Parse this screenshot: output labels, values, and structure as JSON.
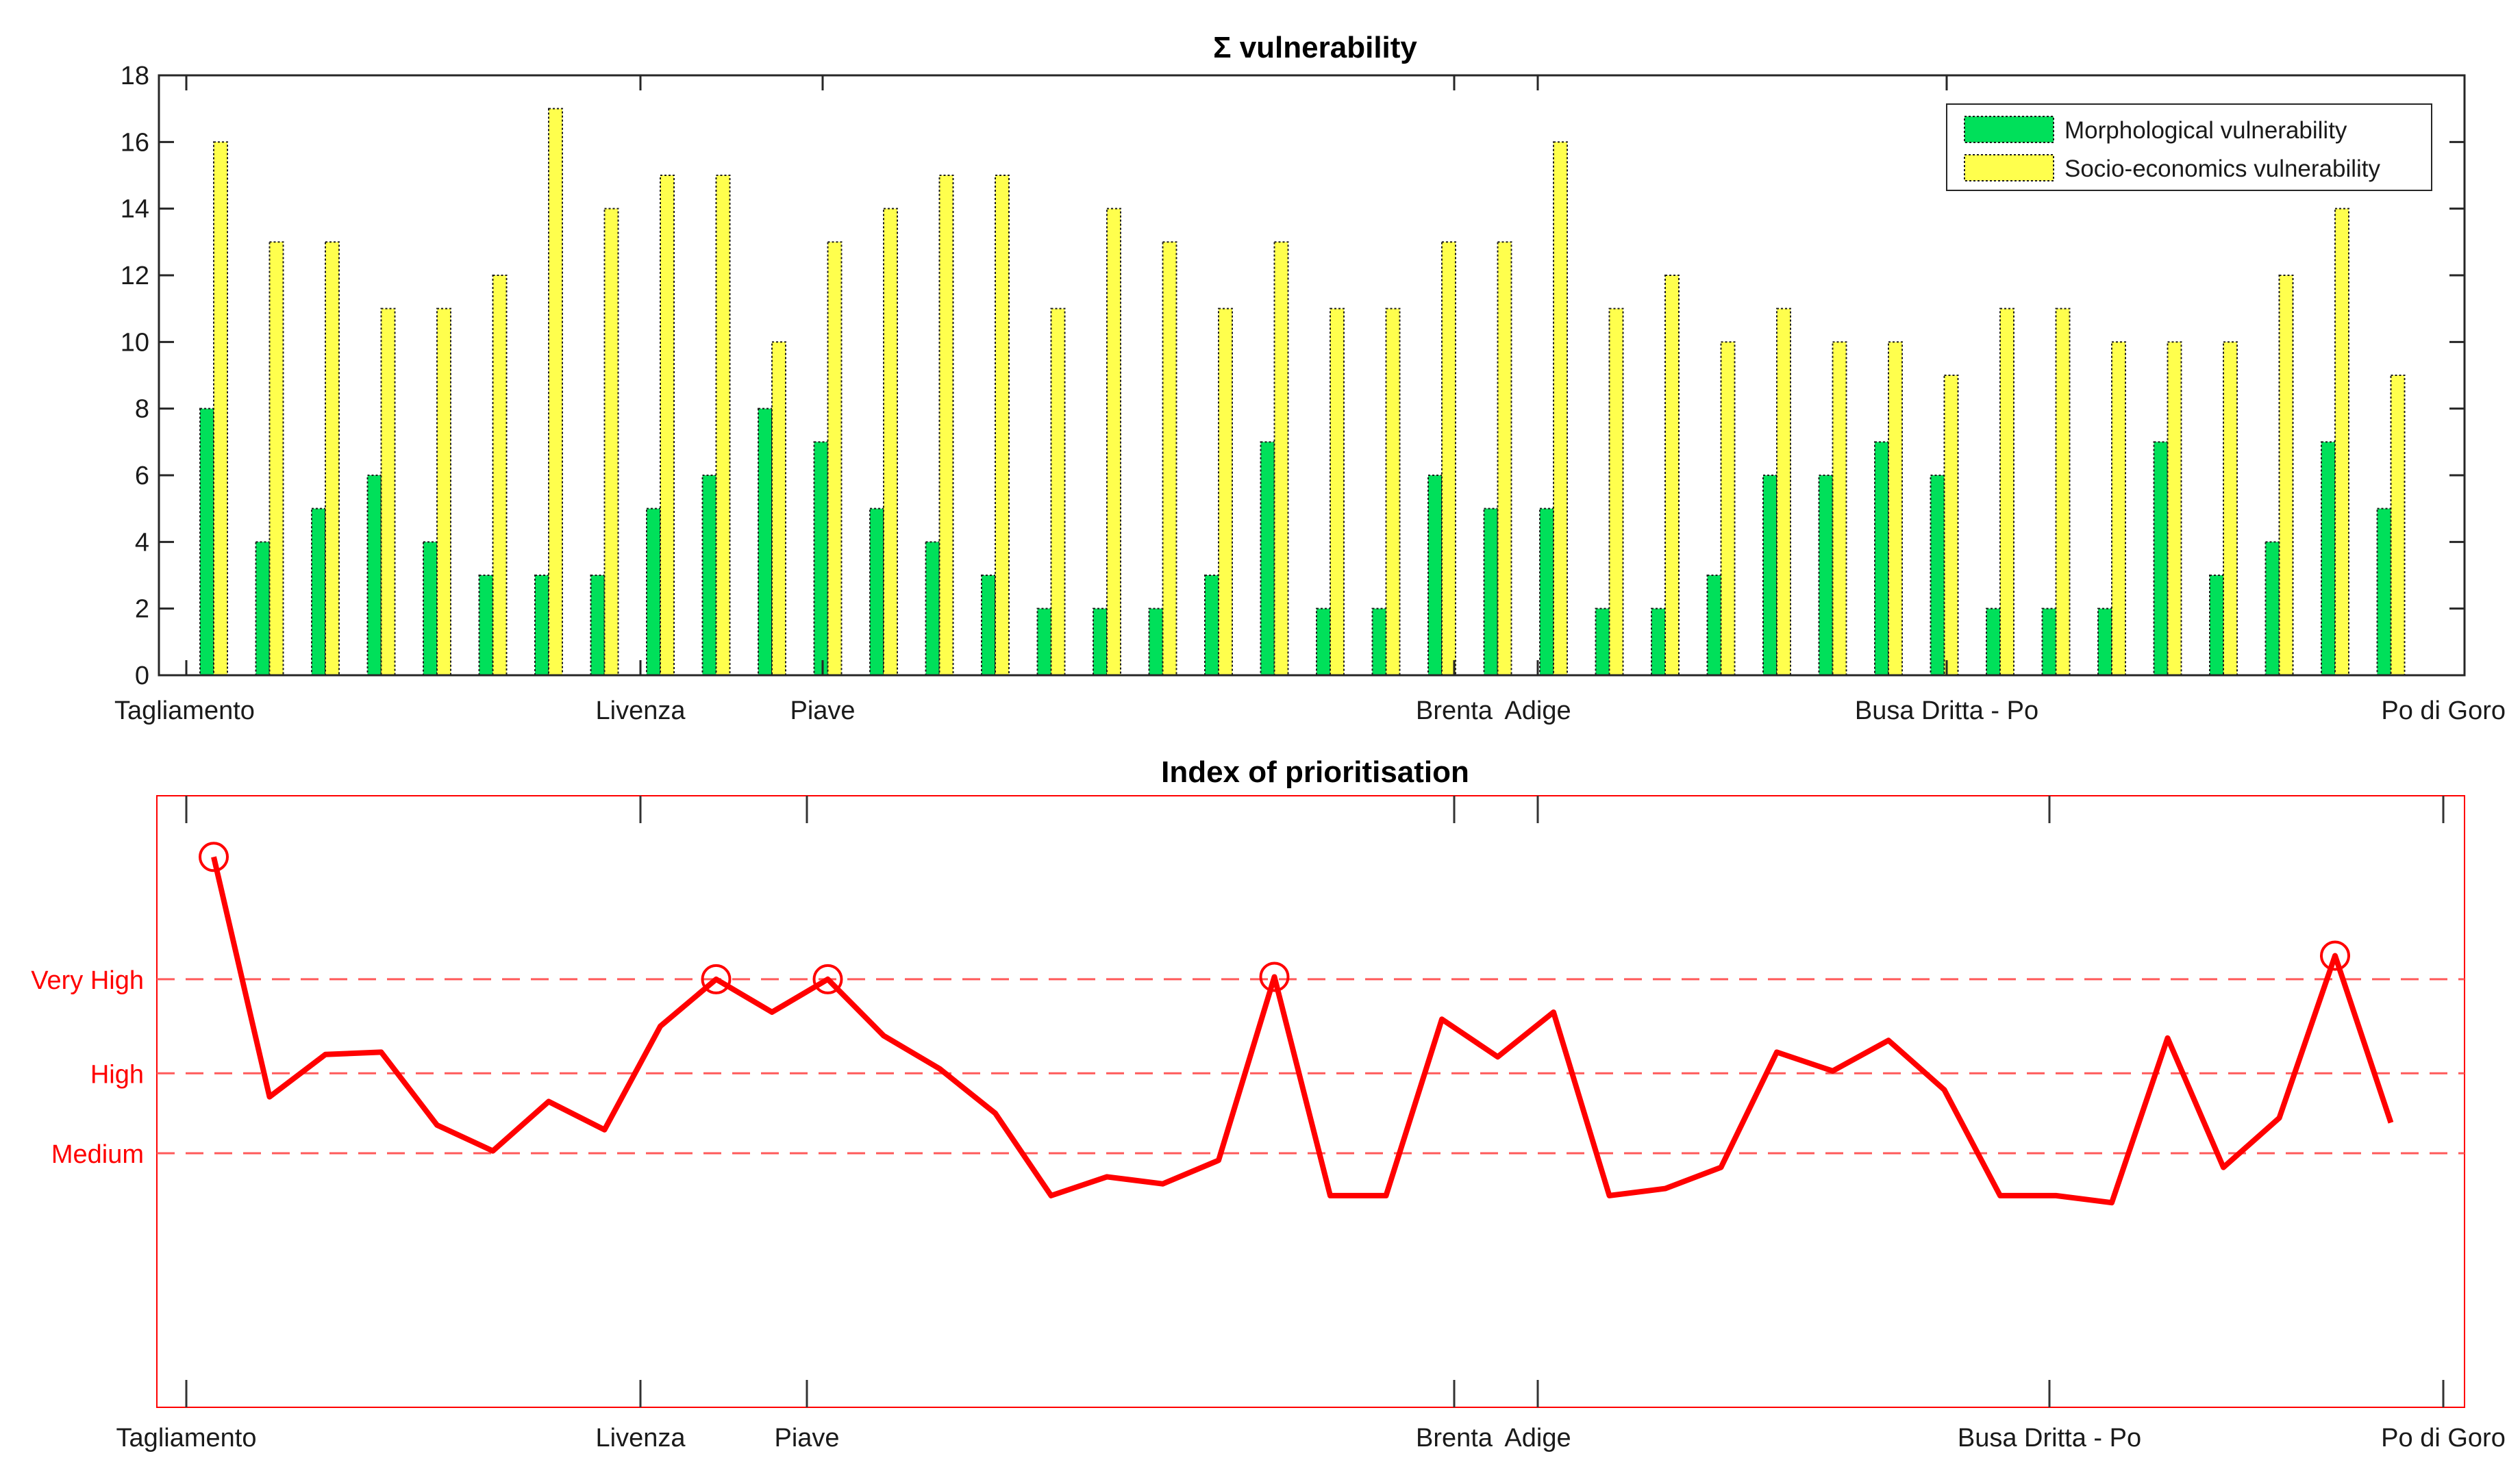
{
  "chart_data": [
    {
      "type": "bar",
      "title": "Σ vulnerability",
      "xlabel": "",
      "ylabel": "",
      "ylim": [
        0,
        18
      ],
      "yticks": [
        0,
        2,
        4,
        6,
        8,
        10,
        12,
        14,
        16,
        18
      ],
      "x_tick_labels": [
        "Tagliamento",
        "Livenza",
        "Piave",
        "Brenta",
        "Adige",
        "Busa Dritta - Po",
        "Po di Goro"
      ],
      "legend_position": "top-right",
      "series": [
        {
          "name": "Morphological vulnerability",
          "color": "#00e05a",
          "values": [
            8,
            4,
            5,
            6,
            4,
            3,
            3,
            3,
            5,
            6,
            8,
            7,
            5,
            4,
            3,
            2,
            2,
            2,
            3,
            7,
            2,
            2,
            6,
            5,
            5,
            2,
            2,
            3,
            6,
            6,
            7,
            6,
            2,
            2,
            2,
            7,
            3,
            4,
            7,
            5
          ]
        },
        {
          "name": "Socio-economics vulnerability",
          "color": "#ffff4d",
          "values": [
            16,
            13,
            13,
            11,
            11,
            12,
            17,
            14,
            15,
            15,
            10,
            13,
            14,
            15,
            15,
            11,
            14,
            13,
            11,
            13,
            11,
            11,
            13,
            13,
            16,
            11,
            12,
            10,
            11,
            10,
            10,
            9,
            11,
            11,
            10,
            10,
            10,
            12,
            14,
            9
          ]
        }
      ]
    },
    {
      "type": "line",
      "title": "Index of prioritisation",
      "xlabel": "",
      "ylabel": "",
      "x_tick_labels": [
        "Tagliamento",
        "Livenza",
        "Piave",
        "Brenta",
        "Adige",
        "Busa Dritta - Po",
        "Po di Goro"
      ],
      "level_labels": [
        "Very High",
        "High",
        "Medium"
      ],
      "level_values": [
        0.61,
        0.41,
        0.24
      ],
      "ylim": [
        -0.3,
        1.0
      ],
      "color": "#ff0000",
      "values": [
        0.87,
        0.36,
        0.45,
        0.455,
        0.3,
        0.245,
        0.35,
        0.29,
        0.51,
        0.61,
        0.54,
        0.61,
        0.49,
        0.42,
        0.325,
        0.15,
        0.19,
        0.175,
        0.225,
        0.615,
        0.15,
        0.15,
        0.525,
        0.445,
        0.54,
        0.15,
        0.165,
        0.21,
        0.455,
        0.415,
        0.48,
        0.375,
        0.15,
        0.15,
        0.135,
        0.485,
        0.21,
        0.315,
        0.66,
        0.305
      ],
      "circled_points": [
        0,
        9,
        11,
        19,
        38
      ]
    }
  ]
}
